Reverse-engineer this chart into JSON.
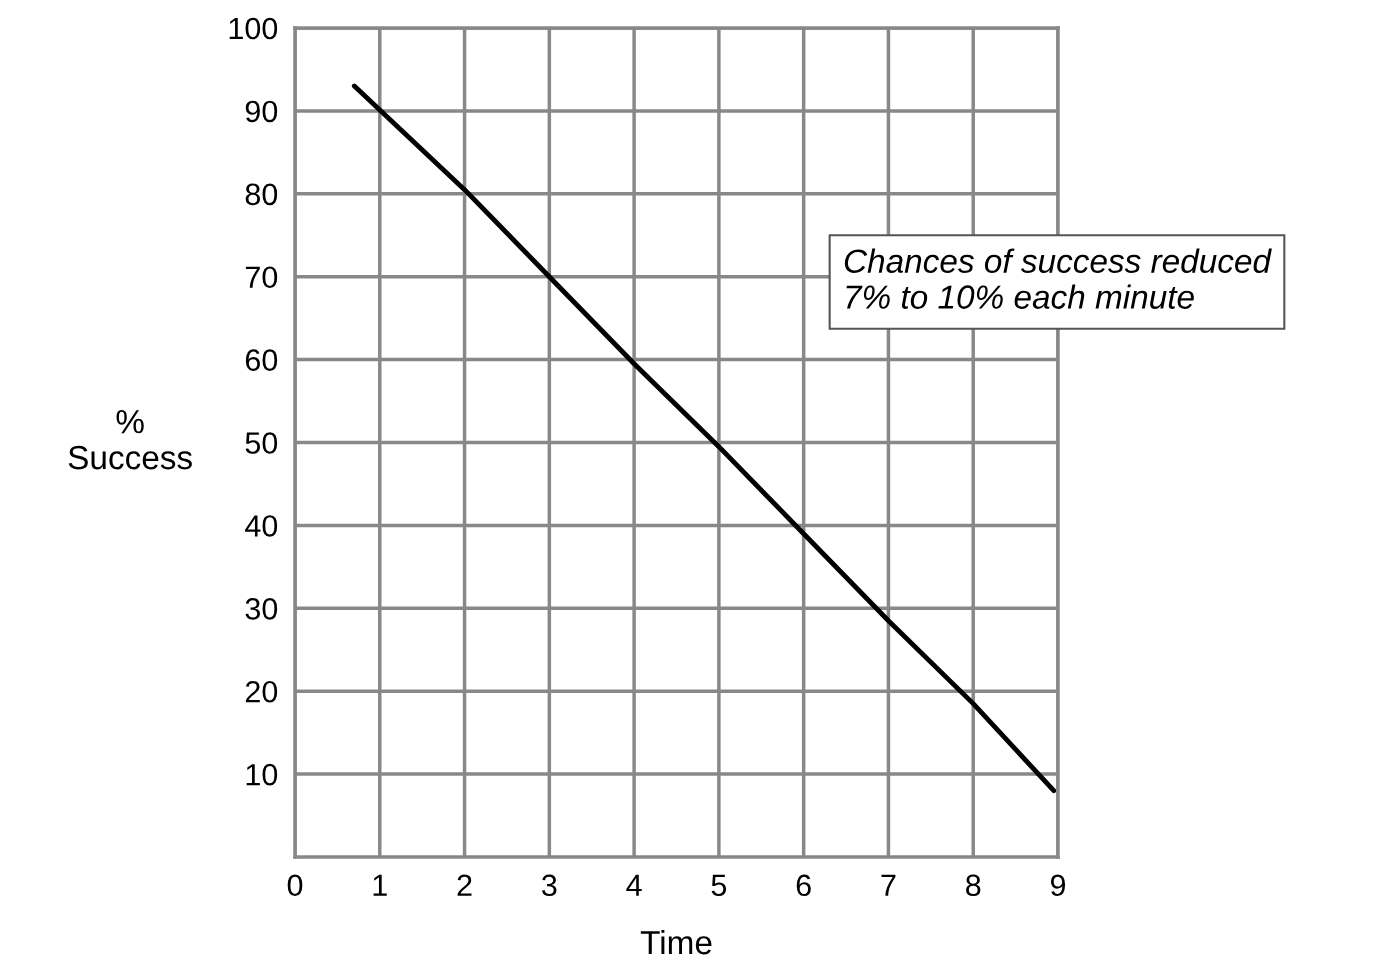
{
  "chart_data": {
    "type": "line",
    "xlabel": "Time",
    "ylabel": "%\nSuccess",
    "x": [
      0.7,
      2,
      3,
      4,
      5,
      6,
      7,
      8,
      8.95
    ],
    "series": [
      {
        "color": "#000000",
        "values": [
          93,
          80.5,
          70,
          59.5,
          49.5,
          39,
          28.5,
          18.5,
          8
        ]
      }
    ],
    "xlim": [
      0,
      9
    ],
    "xticks": [
      0,
      1,
      2,
      3,
      4,
      5,
      6,
      7,
      8,
      9
    ],
    "ylim": [
      0,
      100
    ],
    "yticks": [
      10,
      20,
      30,
      40,
      50,
      60,
      70,
      80,
      90,
      100
    ],
    "grid": true,
    "annotations": [
      "Chances of success reduced\n7% to 10% each minute"
    ]
  }
}
